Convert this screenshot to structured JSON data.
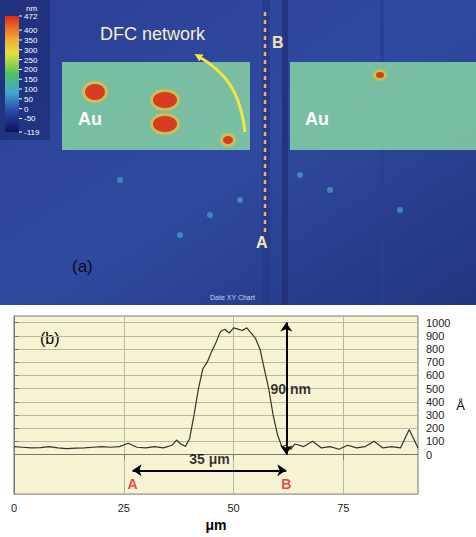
{
  "panel_a": {
    "label": "(a)",
    "arrow_label": "DFC network",
    "regions": [
      "Au",
      "Au"
    ],
    "line_ends": [
      "A",
      "B"
    ],
    "footer": "Date XY Chart",
    "colorbar": {
      "unit": "nm",
      "range": [
        -119,
        472
      ],
      "ticks": [
        -119,
        -50,
        0,
        50,
        100,
        150,
        200,
        250,
        300,
        350,
        400,
        472
      ]
    }
  },
  "chart_data": {
    "type": "line",
    "panel_label": "(b)",
    "x_title": "μm",
    "y_title": "Å",
    "color": "#333333",
    "grid": true,
    "x": [
      0,
      2,
      4,
      6,
      8,
      10,
      12,
      14,
      16,
      18,
      20,
      22,
      24,
      26,
      28,
      30,
      32,
      34,
      36,
      37,
      38,
      39,
      40,
      41,
      42,
      43,
      44,
      45,
      46,
      47,
      48,
      49,
      50,
      51,
      52,
      53,
      54,
      55,
      56,
      57,
      58,
      59,
      60,
      61,
      62,
      63,
      64,
      66,
      68,
      70,
      72,
      74,
      76,
      78,
      80,
      82,
      84,
      86,
      88,
      90,
      92
    ],
    "values": [
      60,
      55,
      50,
      52,
      60,
      50,
      45,
      48,
      50,
      55,
      60,
      55,
      60,
      85,
      55,
      50,
      60,
      50,
      70,
      110,
      80,
      60,
      120,
      300,
      500,
      650,
      700,
      780,
      850,
      930,
      950,
      920,
      960,
      950,
      940,
      960,
      920,
      880,
      800,
      650,
      500,
      300,
      150,
      60,
      70,
      40,
      80,
      60,
      100,
      50,
      60,
      40,
      70,
      50,
      60,
      100,
      50,
      60,
      50,
      190,
      50
    ],
    "xlim": [
      0,
      92
    ],
    "xticks": [
      0,
      25,
      50,
      75
    ],
    "ylim": [
      -300,
      1050
    ],
    "yticks": [
      0,
      100,
      200,
      300,
      400,
      500,
      600,
      700,
      800,
      900,
      1000
    ],
    "arrows": [
      {
        "from": [
          27,
          -120
        ],
        "to": [
          62,
          -120
        ]
      },
      {
        "from": [
          62,
          0
        ],
        "to": [
          62,
          1000
        ]
      }
    ],
    "annotations": [
      {
        "text": "A",
        "x": 27,
        "y": -220,
        "color": "#e02020"
      },
      {
        "text": "B",
        "x": 62,
        "y": -220,
        "color": "#e02020"
      },
      {
        "text": "35 μm",
        "x": 44.5,
        "y": -35,
        "color": "#000000"
      },
      {
        "text": "90 nm",
        "x": 63,
        "y": 500,
        "color": "#000000"
      }
    ]
  }
}
